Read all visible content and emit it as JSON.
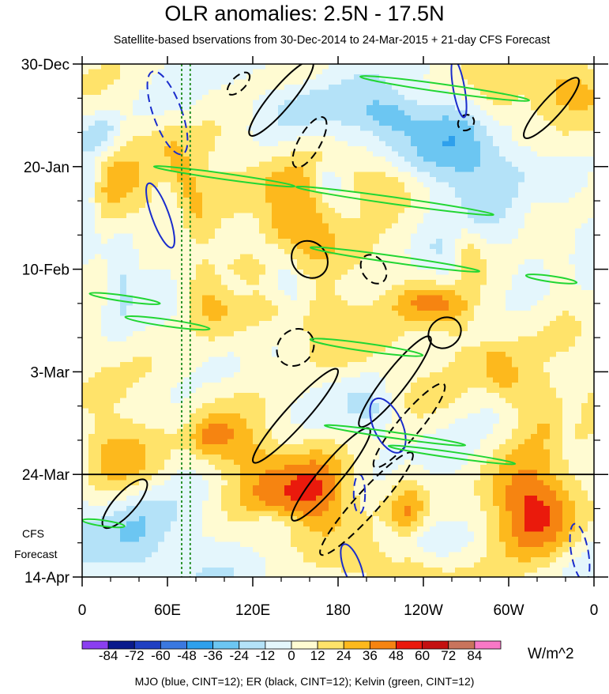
{
  "chart_data": {
    "type": "heatmap",
    "title": "OLR anomalies: 2.5N - 17.5N",
    "subtitle": "Satellite-based bservations from 30-Dec-2014 to 24-Mar-2015 + 21-day CFS Forecast",
    "x_ticks": [
      "0",
      "60E",
      "120E",
      "180",
      "120W",
      "60W",
      "0"
    ],
    "x_tick_values": [
      0,
      60,
      120,
      180,
      240,
      300,
      360
    ],
    "xlim": [
      0,
      360
    ],
    "y_ticks": [
      "30-Dec",
      "20-Jan",
      "10-Feb",
      "3-Mar",
      "24-Mar",
      "14-Apr"
    ],
    "y_tick_values": [
      "2014-12-30",
      "2015-01-20",
      "2015-02-10",
      "2015-03-03",
      "2015-03-24",
      "2015-04-14"
    ],
    "ylim": [
      "2014-12-30",
      "2015-04-14"
    ],
    "forecast_start": "2015-03-24",
    "forecast_label": [
      "CFS",
      "Forecast"
    ],
    "colorbar": {
      "labels": [
        "-84",
        "-72",
        "-60",
        "-48",
        "-36",
        "-24",
        "-12",
        "0",
        "12",
        "24",
        "36",
        "48",
        "60",
        "72",
        "84"
      ],
      "colors": [
        "#8a3ef0",
        "#0a1a8c",
        "#1f3fc2",
        "#3a78e0",
        "#2ea0ec",
        "#6cc6f2",
        "#b4e2f8",
        "#e4f6fc",
        "#fffbd2",
        "#ffe36a",
        "#fdb91d",
        "#f68411",
        "#ea1a0c",
        "#c41010",
        "#c9745c",
        "#f878c6"
      ],
      "units": "W/m^2"
    },
    "contours_legend": "MJO (blue, CINT=12); ER (black, CINT=12); Kelvin (green, CINT=12)",
    "colors": {
      "mjo": "#1a2ccc",
      "er": "#000000",
      "kelvin": "#22d633"
    }
  }
}
